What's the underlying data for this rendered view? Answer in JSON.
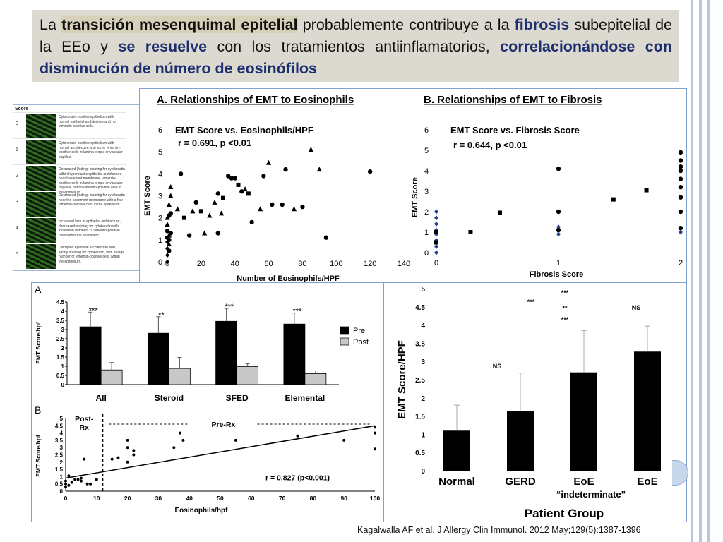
{
  "slide": {
    "title_parts": [
      {
        "text": "La ",
        "style": "plain"
      },
      {
        "text": "transición mesenquimal epitelial",
        "style": "bold-highlight"
      },
      {
        "text": " probablemente contribuye a la ",
        "style": "plain"
      },
      {
        "text": "fibrosis",
        "style": "bold-blue"
      },
      {
        "text": " subepitelial de la EEo y ",
        "style": "plain"
      },
      {
        "text": "se resuelve",
        "style": "bold-blue"
      },
      {
        "text": " con los tratamientos antiinflamatorios, ",
        "style": "plain"
      },
      {
        "text": "correlacionándose con disminución de número de eosinófilos",
        "style": "bold-blue"
      }
    ],
    "citation": "Kagalwalla AF et al. J Allergy Clin Immunol. 2012 May;129(5):1387-1396"
  },
  "score_legend": {
    "header": "Score",
    "rows": [
      {
        "score": "0",
        "text": "Cytokeratin-positive epithelium with normal epithelial architecture and no vimentin-positive cells."
      },
      {
        "score": "1",
        "text": "Cytokeratin-positive epithelium with normal architecture and some vimentin-positive cells in lamina propia or vascular papillae."
      },
      {
        "score": "2",
        "text": "Decreased (fading) staining for cytokeratin within hyperplastic epithelial architecture near basement membrane, vimentin-positive cells in lamina propia or vascular papillae, but no vimentin-positive cells in the epithelium."
      },
      {
        "score": "3",
        "text": "Decreased (fading) staining for cytokeratin near the basement membrane with a few vimentin-positive cells in the epithelium."
      },
      {
        "score": "4",
        "text": "Increased loss of epithelial architecture, decreased staining for cytokeratin with increased numbers of vimentin-positive cells within the epithelium."
      },
      {
        "score": "5",
        "text": "Disrupted epithelial architecture and spotty staining for cytokeratin, with a large number of vimentin-positive cells within the epithelium."
      }
    ],
    "colors": {
      "green": "#2e6b1f",
      "dark": "#0e1a0c"
    }
  },
  "chart_data": [
    {
      "type": "scatter",
      "panel_label": "A. Relationships of EMT to Eosinophils",
      "title": "EMT Score vs. Eosinophils/HPF",
      "annotation": "r = 0.691, p <0.01",
      "xlabel": "Number of Eosinophils/HPF",
      "ylabel": "EMT Score",
      "xlim": [
        0,
        140
      ],
      "ylim": [
        0,
        6
      ],
      "xticks": [
        "0",
        "20",
        "40",
        "60",
        "80",
        "100",
        "120",
        "140"
      ],
      "yticks": [
        "0",
        "1",
        "2",
        "3",
        "4",
        "5",
        "6"
      ],
      "points": [
        {
          "x": 0,
          "y": 0,
          "m": "diamond"
        },
        {
          "x": 0,
          "y": 0.3,
          "m": "diamond"
        },
        {
          "x": 0,
          "y": 0.6,
          "m": "diamond"
        },
        {
          "x": 0,
          "y": 0.9,
          "m": "diamond"
        },
        {
          "x": 0,
          "y": 1.1,
          "m": "circle"
        },
        {
          "x": 0,
          "y": 1.4,
          "m": "circle"
        },
        {
          "x": 0,
          "y": 1.7,
          "m": "triangle"
        },
        {
          "x": 0,
          "y": 2.0,
          "m": "triangle"
        },
        {
          "x": 1,
          "y": 0.5,
          "m": "circle"
        },
        {
          "x": 1,
          "y": 0.8,
          "m": "triangle"
        },
        {
          "x": 1,
          "y": 1.0,
          "m": "circle"
        },
        {
          "x": 1,
          "y": 1.2,
          "m": "triangle"
        },
        {
          "x": 1,
          "y": 2.1,
          "m": "circle"
        },
        {
          "x": 1,
          "y": 2.6,
          "m": "triangle"
        },
        {
          "x": 2,
          "y": 1.3,
          "m": "circle"
        },
        {
          "x": 2,
          "y": 2.2,
          "m": "circle"
        },
        {
          "x": 2,
          "y": 3.0,
          "m": "triangle"
        },
        {
          "x": 2,
          "y": 3.4,
          "m": "triangle"
        },
        {
          "x": 6,
          "y": 2.4,
          "m": "triangle"
        },
        {
          "x": 8,
          "y": 4.0,
          "m": "circle"
        },
        {
          "x": 10,
          "y": 2.0,
          "m": "square"
        },
        {
          "x": 13,
          "y": 1.2,
          "m": "circle"
        },
        {
          "x": 15,
          "y": 2.3,
          "m": "triangle"
        },
        {
          "x": 17,
          "y": 2.7,
          "m": "circle"
        },
        {
          "x": 20,
          "y": 2.3,
          "m": "square"
        },
        {
          "x": 22,
          "y": 1.3,
          "m": "triangle"
        },
        {
          "x": 25,
          "y": 2.1,
          "m": "triangle"
        },
        {
          "x": 28,
          "y": 2.7,
          "m": "triangle"
        },
        {
          "x": 30,
          "y": 3.1,
          "m": "circle"
        },
        {
          "x": 33,
          "y": 2.9,
          "m": "square"
        },
        {
          "x": 30,
          "y": 1.3,
          "m": "circle"
        },
        {
          "x": 32,
          "y": 2.2,
          "m": "triangle"
        },
        {
          "x": 36,
          "y": 3.9,
          "m": "circle"
        },
        {
          "x": 38,
          "y": 3.8,
          "m": "circle"
        },
        {
          "x": 40,
          "y": 3.8,
          "m": "circle"
        },
        {
          "x": 42,
          "y": 3.5,
          "m": "square"
        },
        {
          "x": 44,
          "y": 3.2,
          "m": "circle"
        },
        {
          "x": 46,
          "y": 3.3,
          "m": "triangle"
        },
        {
          "x": 48,
          "y": 3.1,
          "m": "square"
        },
        {
          "x": 50,
          "y": 1.8,
          "m": "circle"
        },
        {
          "x": 55,
          "y": 2.4,
          "m": "triangle"
        },
        {
          "x": 57,
          "y": 3.9,
          "m": "circle"
        },
        {
          "x": 60,
          "y": 4.5,
          "m": "triangle"
        },
        {
          "x": 62,
          "y": 2.6,
          "m": "circle"
        },
        {
          "x": 68,
          "y": 2.6,
          "m": "circle"
        },
        {
          "x": 70,
          "y": 4.2,
          "m": "circle"
        },
        {
          "x": 75,
          "y": 2.4,
          "m": "triangle"
        },
        {
          "x": 80,
          "y": 2.5,
          "m": "circle"
        },
        {
          "x": 85,
          "y": 5.1,
          "m": "triangle"
        },
        {
          "x": 90,
          "y": 4.2,
          "m": "triangle"
        },
        {
          "x": 94,
          "y": 1.1,
          "m": "circle"
        },
        {
          "x": 120,
          "y": 4.1,
          "m": "circle"
        }
      ]
    },
    {
      "type": "scatter",
      "panel_label": "B. Relationships of EMT to Fibrosis",
      "title": "EMT Score vs. Fibrosis Score",
      "annotation": "r = 0.644, p <0.01",
      "xlabel": "Fibrosis Score",
      "ylabel": "EMT Score",
      "xlim": [
        0,
        2
      ],
      "ylim": [
        0,
        6
      ],
      "xticks": [
        "0",
        "1",
        "2"
      ],
      "yticks": [
        "0",
        "1",
        "2",
        "3",
        "4",
        "5",
        "6"
      ],
      "points": [
        {
          "x": 0,
          "y": 0,
          "m": "diamond"
        },
        {
          "x": 0,
          "y": 0.3,
          "m": "diamond"
        },
        {
          "x": 0,
          "y": 0.6,
          "m": "diamond"
        },
        {
          "x": 0,
          "y": 0.9,
          "m": "diamond"
        },
        {
          "x": 0,
          "y": 1.1,
          "m": "diamond"
        },
        {
          "x": 0,
          "y": 1.4,
          "m": "diamond"
        },
        {
          "x": 0,
          "y": 1.7,
          "m": "diamond"
        },
        {
          "x": 0,
          "y": 2.0,
          "m": "diamond"
        },
        {
          "x": 0,
          "y": 0.5,
          "m": "square"
        },
        {
          "x": 0,
          "y": 1.0,
          "m": "square"
        },
        {
          "x": 0.28,
          "y": 1.0,
          "m": "square"
        },
        {
          "x": 0.52,
          "y": 1.95,
          "m": "square"
        },
        {
          "x": 1.45,
          "y": 2.6,
          "m": "square"
        },
        {
          "x": 1.72,
          "y": 3.05,
          "m": "square"
        },
        {
          "x": 1,
          "y": 0.9,
          "m": "diamond"
        },
        {
          "x": 1,
          "y": 1.25,
          "m": "diamond"
        },
        {
          "x": 1,
          "y": 1.1,
          "m": "circle"
        },
        {
          "x": 1,
          "y": 2.0,
          "m": "circle"
        },
        {
          "x": 1,
          "y": 4.1,
          "m": "circle"
        },
        {
          "x": 2,
          "y": 1.0,
          "m": "diamond"
        },
        {
          "x": 2,
          "y": 1.2,
          "m": "circle"
        },
        {
          "x": 2,
          "y": 2.0,
          "m": "circle"
        },
        {
          "x": 2,
          "y": 2.7,
          "m": "circle"
        },
        {
          "x": 2,
          "y": 3.2,
          "m": "circle"
        },
        {
          "x": 2,
          "y": 3.6,
          "m": "circle"
        },
        {
          "x": 2,
          "y": 4.0,
          "m": "circle"
        },
        {
          "x": 2,
          "y": 4.2,
          "m": "circle"
        },
        {
          "x": 2,
          "y": 4.5,
          "m": "circle"
        },
        {
          "x": 2,
          "y": 4.9,
          "m": "circle"
        }
      ]
    },
    {
      "type": "bar",
      "panel_label": "A",
      "ylabel": "EMT Score/hpf",
      "categories": [
        "All",
        "Steroid",
        "SFED",
        "Elemental"
      ],
      "ylim": [
        0,
        4.5
      ],
      "yticks": [
        "0",
        "0.5",
        "1",
        "1.5",
        "2",
        "2.5",
        "3",
        "3.5",
        "4",
        "4.5"
      ],
      "series": [
        {
          "name": "Pre",
          "values": [
            3.15,
            2.8,
            3.45,
            3.3
          ],
          "errors": [
            0.8,
            0.9,
            0.7,
            0.6
          ],
          "color": "#000000"
        },
        {
          "name": "Post",
          "values": [
            0.8,
            0.88,
            0.98,
            0.6
          ],
          "errors": [
            0.4,
            0.6,
            0.15,
            0.15
          ],
          "color": "#c8c8c8"
        }
      ],
      "significance": [
        "***",
        "**",
        "***",
        "***"
      ],
      "legend_position": "right"
    },
    {
      "type": "scatter",
      "panel_label": "B",
      "xlabel": "Eosinophils/hpf",
      "ylabel": "EMT Score/hpf",
      "xlim": [
        0,
        100
      ],
      "ylim": [
        0,
        5
      ],
      "xticks": [
        "0",
        "10",
        "20",
        "30",
        "40",
        "50",
        "60",
        "70",
        "80",
        "90",
        "100"
      ],
      "yticks": [
        "0",
        "0.5",
        "1",
        "1.5",
        "2",
        "2.5",
        "3",
        "3.5",
        "4",
        "4.5",
        "5"
      ],
      "annotation": "r = 0.827 (p<0.001)",
      "region_labels": [
        "Post-\nRx",
        "Pre-Rx"
      ],
      "threshold_x": 12,
      "fit_line": {
        "x": [
          0,
          100
        ],
        "y": [
          0.9,
          4.5
        ]
      },
      "points": [
        {
          "x": 0,
          "y": 0.3
        },
        {
          "x": 0,
          "y": 0.5
        },
        {
          "x": 0,
          "y": 0.7
        },
        {
          "x": 1,
          "y": 0.4
        },
        {
          "x": 1,
          "y": 1.05
        },
        {
          "x": 2,
          "y": 0.6
        },
        {
          "x": 3,
          "y": 0.8
        },
        {
          "x": 4,
          "y": 0.8
        },
        {
          "x": 5,
          "y": 0.7
        },
        {
          "x": 5,
          "y": 0.9
        },
        {
          "x": 6,
          "y": 2.2
        },
        {
          "x": 7,
          "y": 0.5
        },
        {
          "x": 8,
          "y": 0.5
        },
        {
          "x": 10,
          "y": 0.8
        },
        {
          "x": 15,
          "y": 2.2
        },
        {
          "x": 17,
          "y": 2.3
        },
        {
          "x": 20,
          "y": 2.0
        },
        {
          "x": 20,
          "y": 3.0
        },
        {
          "x": 20,
          "y": 3.5
        },
        {
          "x": 22,
          "y": 2.8
        },
        {
          "x": 22,
          "y": 2.5
        },
        {
          "x": 35,
          "y": 3.0
        },
        {
          "x": 37,
          "y": 4.0
        },
        {
          "x": 38,
          "y": 3.5
        },
        {
          "x": 55,
          "y": 3.5
        },
        {
          "x": 75,
          "y": 3.8
        },
        {
          "x": 90,
          "y": 3.5
        },
        {
          "x": 100,
          "y": 2.9
        },
        {
          "x": 100,
          "y": 4.0
        },
        {
          "x": 100,
          "y": 4.4
        }
      ]
    },
    {
      "type": "bar",
      "xlabel": "Patient Group",
      "ylabel": "EMT Score/HPF",
      "categories": [
        "Normal",
        "GERD",
        "EoE",
        "EoE"
      ],
      "category_sublabels": [
        "",
        "",
        "“indeterminate”",
        ""
      ],
      "ylim": [
        0,
        5
      ],
      "yticks": [
        "0",
        "0.5",
        "1",
        "1.5",
        "2",
        "2.5",
        "3",
        "3.5",
        "4",
        "4.5",
        "5"
      ],
      "values": [
        1.1,
        1.63,
        2.7,
        3.27
      ],
      "errors": [
        0.7,
        1.05,
        1.15,
        0.7
      ],
      "significance_labels": [
        "NS",
        "***",
        "***",
        "**",
        "***",
        "NS"
      ]
    }
  ]
}
